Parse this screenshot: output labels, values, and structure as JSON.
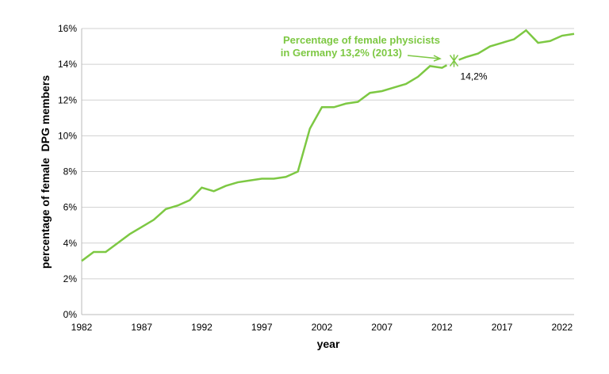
{
  "chart_data": {
    "type": "line",
    "xlabel": "year",
    "ylabel": "percentage of female  DPG members",
    "xlim": [
      1982,
      2023
    ],
    "ylim": [
      0,
      16
    ],
    "grid": true,
    "x_ticks": [
      1982,
      1987,
      1992,
      1997,
      2002,
      2007,
      2012,
      2017,
      2022
    ],
    "y_ticks": [
      "0%",
      "2%",
      "4%",
      "6%",
      "8%",
      "10%",
      "12%",
      "14%",
      "16%"
    ],
    "series_color": "#7dc843",
    "x": [
      1982,
      1983,
      1984,
      1985,
      1986,
      1987,
      1988,
      1989,
      1990,
      1991,
      1992,
      1993,
      1994,
      1995,
      1996,
      1997,
      1998,
      1999,
      2000,
      2001,
      2002,
      2003,
      2004,
      2005,
      2006,
      2007,
      2008,
      2009,
      2010,
      2011,
      2012,
      2013,
      2014,
      2015,
      2016,
      2017,
      2018,
      2019,
      2020,
      2021,
      2022,
      2023
    ],
    "values": [
      3.0,
      3.5,
      3.5,
      4.0,
      4.5,
      4.9,
      5.3,
      5.9,
      6.1,
      6.4,
      7.1,
      6.9,
      7.2,
      7.4,
      7.5,
      7.6,
      7.6,
      7.7,
      8.0,
      10.4,
      11.6,
      11.6,
      11.8,
      11.9,
      12.4,
      12.5,
      12.7,
      12.9,
      13.3,
      13.9,
      13.8,
      14.2,
      14.4,
      14.6,
      15.0,
      15.2,
      15.4,
      15.9,
      15.2,
      15.3,
      15.6,
      15.7
    ],
    "annotations": [
      {
        "text_line1": "Percentage of female physicists",
        "text_line2": "in Germany 13,2% (2013)",
        "x": 2013,
        "y": 14.2,
        "marker_label": "14,2%"
      }
    ]
  }
}
